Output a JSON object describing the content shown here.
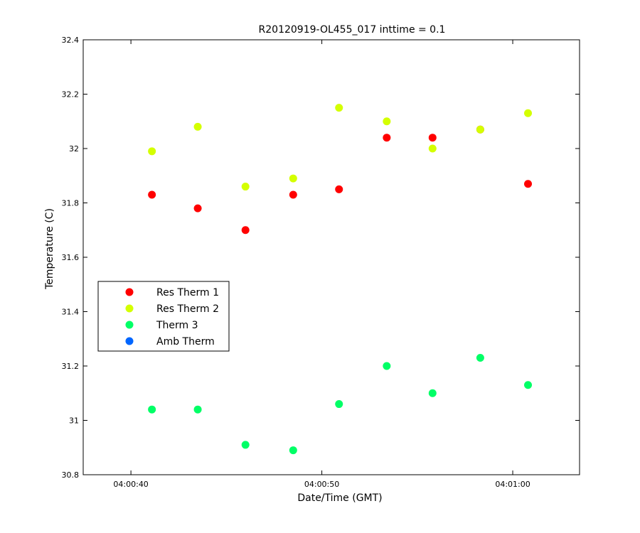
{
  "chart_data": {
    "type": "scatter",
    "title": "R20120919-OL455_017 inttime = 0.1",
    "xlabel": "Date/Time (GMT)",
    "ylabel": "Temperature (C)",
    "xlim": [
      37.5,
      63.5
    ],
    "ylim": [
      30.8,
      32.4
    ],
    "x_ticks": [
      {
        "value": 40,
        "label": "04:00:40"
      },
      {
        "value": 50,
        "label": "04:00:50"
      },
      {
        "value": 60,
        "label": "04:01:00"
      }
    ],
    "y_ticks": [
      {
        "value": 30.8,
        "label": "30.8"
      },
      {
        "value": 31.0,
        "label": "31"
      },
      {
        "value": 31.2,
        "label": "31.2"
      },
      {
        "value": 31.4,
        "label": "31.4"
      },
      {
        "value": 31.6,
        "label": "31.6"
      },
      {
        "value": 31.8,
        "label": "31.8"
      },
      {
        "value": 32.0,
        "label": "32"
      },
      {
        "value": 32.2,
        "label": "32.2"
      },
      {
        "value": 32.4,
        "label": "32.4"
      }
    ],
    "grid": false,
    "legend_position": "left",
    "x": [
      41.1,
      43.5,
      46.0,
      48.5,
      50.9,
      53.4,
      55.8,
      58.3,
      60.8
    ],
    "series": [
      {
        "name": "Res Therm 1",
        "color": "#ff0000",
        "values": [
          31.83,
          31.78,
          31.7,
          31.83,
          31.85,
          32.04,
          32.04,
          32.07,
          31.87
        ]
      },
      {
        "name": "Res Therm 2",
        "color": "#d4ff00",
        "values": [
          31.99,
          32.08,
          31.86,
          31.89,
          32.15,
          32.1,
          32.0,
          32.07,
          32.13
        ]
      },
      {
        "name": "Therm 3",
        "color": "#00ff66",
        "values": [
          31.04,
          31.04,
          30.91,
          30.89,
          31.06,
          31.2,
          31.1,
          31.23,
          31.13
        ]
      },
      {
        "name": "Amb Therm",
        "color": "#0066ff",
        "values": []
      }
    ]
  }
}
